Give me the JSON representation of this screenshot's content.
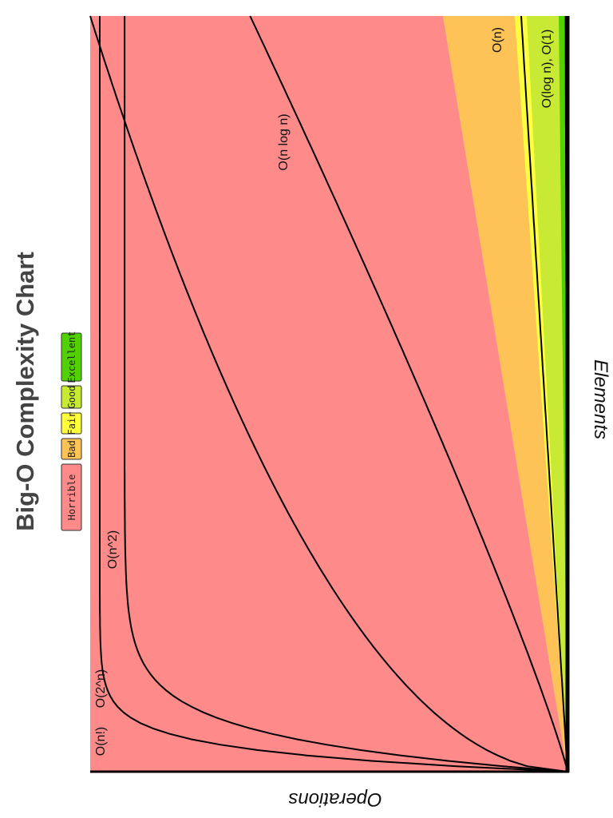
{
  "chart_data": {
    "type": "area",
    "title": "Big-O Complexity Chart",
    "xlabel": "Elements",
    "ylabel": "Operations",
    "legend": [
      {
        "name": "Horrible",
        "color": "#fe8a8a"
      },
      {
        "name": "Bad",
        "color": "#fdc356"
      },
      {
        "name": "Fair",
        "color": "#ffff3e"
      },
      {
        "name": "Good",
        "color": "#c8ea34"
      },
      {
        "name": "Excellent",
        "color": "#53d000"
      }
    ],
    "regions": [
      {
        "name": "Horrible",
        "color": "#fe8a8a"
      },
      {
        "name": "Bad",
        "color": "#fdc356"
      },
      {
        "name": "Fair",
        "color": "#ffff3e"
      },
      {
        "name": "Good",
        "color": "#c8ea34"
      },
      {
        "name": "Excellent",
        "color": "#53d000"
      }
    ],
    "series": [
      {
        "name": "O(n!)"
      },
      {
        "name": "O(2^n)"
      },
      {
        "name": "O(n^2)"
      },
      {
        "name": "O(n log n)"
      },
      {
        "name": "O(n)"
      },
      {
        "name": "O(log n), O(1)"
      }
    ],
    "orientation": "rotated 90° clockwise",
    "grid": false
  }
}
